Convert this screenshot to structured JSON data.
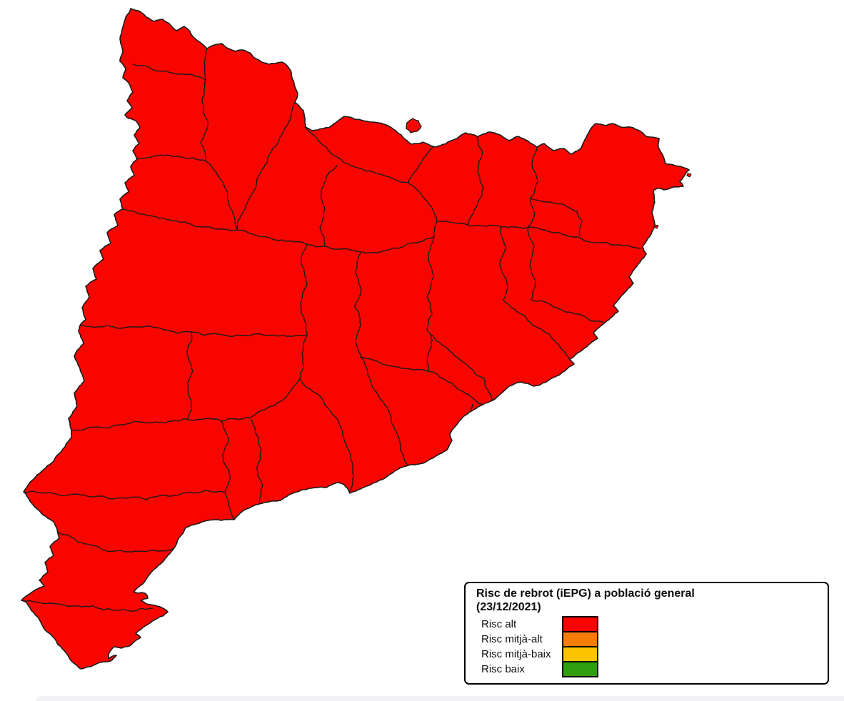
{
  "legend": {
    "title_line1": "Risc de rebrot (iEPG) a població general",
    "title_line2": "(23/12/2021)",
    "items": [
      {
        "label": "Risc alt",
        "color": "#F90500"
      },
      {
        "label": "Risc mitjà-alt",
        "color": "#F57C06"
      },
      {
        "label": "Risc mitjà-baix",
        "color": "#FAC402"
      },
      {
        "label": "Risc baix",
        "color": "#2F9D0D"
      }
    ]
  },
  "colors": {
    "map_fill": "#F90500",
    "map_border": "#1A1A1A",
    "page_background": "#FFFFFF",
    "footer_bar": "#F2F2F4"
  }
}
